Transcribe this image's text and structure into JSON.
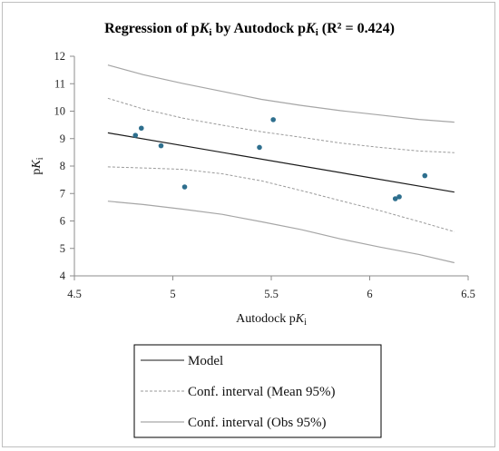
{
  "chart_data": {
    "type": "scatter",
    "title": {
      "before": "Regression of p",
      "k1": "K",
      "i1": "i",
      "middle": " by Autodock p",
      "k2": "K",
      "i2": "i",
      "after": " (R² = 0.424)"
    },
    "xlabel": {
      "text": "Autodock p",
      "k": "K",
      "i": "i"
    },
    "ylabel": {
      "text": "p",
      "k": "K",
      "i": "i"
    },
    "xlim": [
      4.5,
      6.5
    ],
    "ylim": [
      4,
      12
    ],
    "xticks": [
      "4.5",
      "5",
      "5.5",
      "6",
      "6.5"
    ],
    "yticks": [
      "4",
      "5",
      "6",
      "7",
      "8",
      "9",
      "10",
      "11",
      "12"
    ],
    "grid": false,
    "points": [
      {
        "x": 4.81,
        "y": 9.12
      },
      {
        "x": 4.84,
        "y": 9.38
      },
      {
        "x": 4.94,
        "y": 8.74
      },
      {
        "x": 5.06,
        "y": 7.24
      },
      {
        "x": 5.44,
        "y": 8.68
      },
      {
        "x": 5.51,
        "y": 9.69
      },
      {
        "x": 6.13,
        "y": 6.81
      },
      {
        "x": 6.15,
        "y": 6.88
      },
      {
        "x": 6.28,
        "y": 7.65
      }
    ],
    "point_color": "#2e6f8e",
    "model_line": {
      "x": [
        4.67,
        6.43
      ],
      "y": [
        9.21,
        7.05
      ]
    },
    "ci_mean": {
      "x": [
        4.67,
        4.85,
        5.05,
        5.25,
        5.45,
        5.65,
        5.85,
        6.05,
        6.25,
        6.43
      ],
      "upper": [
        10.47,
        10.08,
        9.75,
        9.49,
        9.25,
        9.05,
        8.84,
        8.68,
        8.55,
        8.49
      ],
      "lower": [
        7.97,
        7.93,
        7.88,
        7.72,
        7.46,
        7.11,
        6.74,
        6.38,
        5.98,
        5.61
      ]
    },
    "ci_obs": {
      "x": [
        4.67,
        4.85,
        5.05,
        5.25,
        5.45,
        5.65,
        5.85,
        6.05,
        6.25,
        6.43
      ],
      "upper": [
        11.68,
        11.33,
        11.01,
        10.72,
        10.43,
        10.21,
        10.02,
        9.86,
        9.7,
        9.6
      ],
      "lower": [
        6.72,
        6.6,
        6.43,
        6.24,
        5.97,
        5.69,
        5.35,
        5.05,
        4.78,
        4.48
      ]
    },
    "legend": {
      "position": "bottom",
      "entries": [
        "Model",
        "Conf. interval (Mean 95%)",
        "Conf. interval (Obs 95%)"
      ]
    }
  }
}
